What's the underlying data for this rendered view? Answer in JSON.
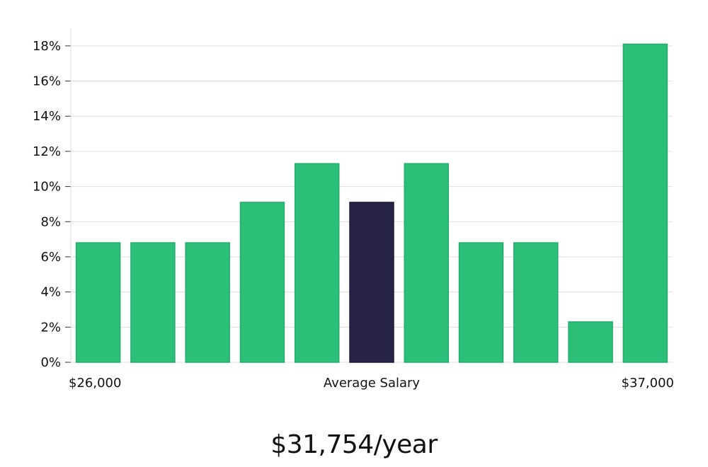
{
  "chart_data": {
    "type": "bar",
    "categories": [
      "1",
      "2",
      "3",
      "4",
      "5",
      "6",
      "7",
      "8",
      "9",
      "10",
      "11"
    ],
    "values": [
      6.8,
      6.8,
      6.8,
      9.1,
      11.3,
      9.1,
      11.3,
      6.8,
      6.8,
      2.3,
      18.1
    ],
    "highlight_index": 5,
    "ylim": [
      0,
      19
    ],
    "yticks": [
      0,
      2,
      4,
      6,
      8,
      10,
      12,
      14,
      16,
      18
    ],
    "ytick_suffix": "%",
    "grid": true,
    "x_labels": {
      "left": "$26,000",
      "center": "Average Salary",
      "right": "$37,000"
    },
    "colors": {
      "bar": "#2bbf78",
      "bar_stroke": "#24ad6c",
      "highlight": "#282446",
      "grid": "#dddddd"
    }
  },
  "caption": "$31,754/year"
}
